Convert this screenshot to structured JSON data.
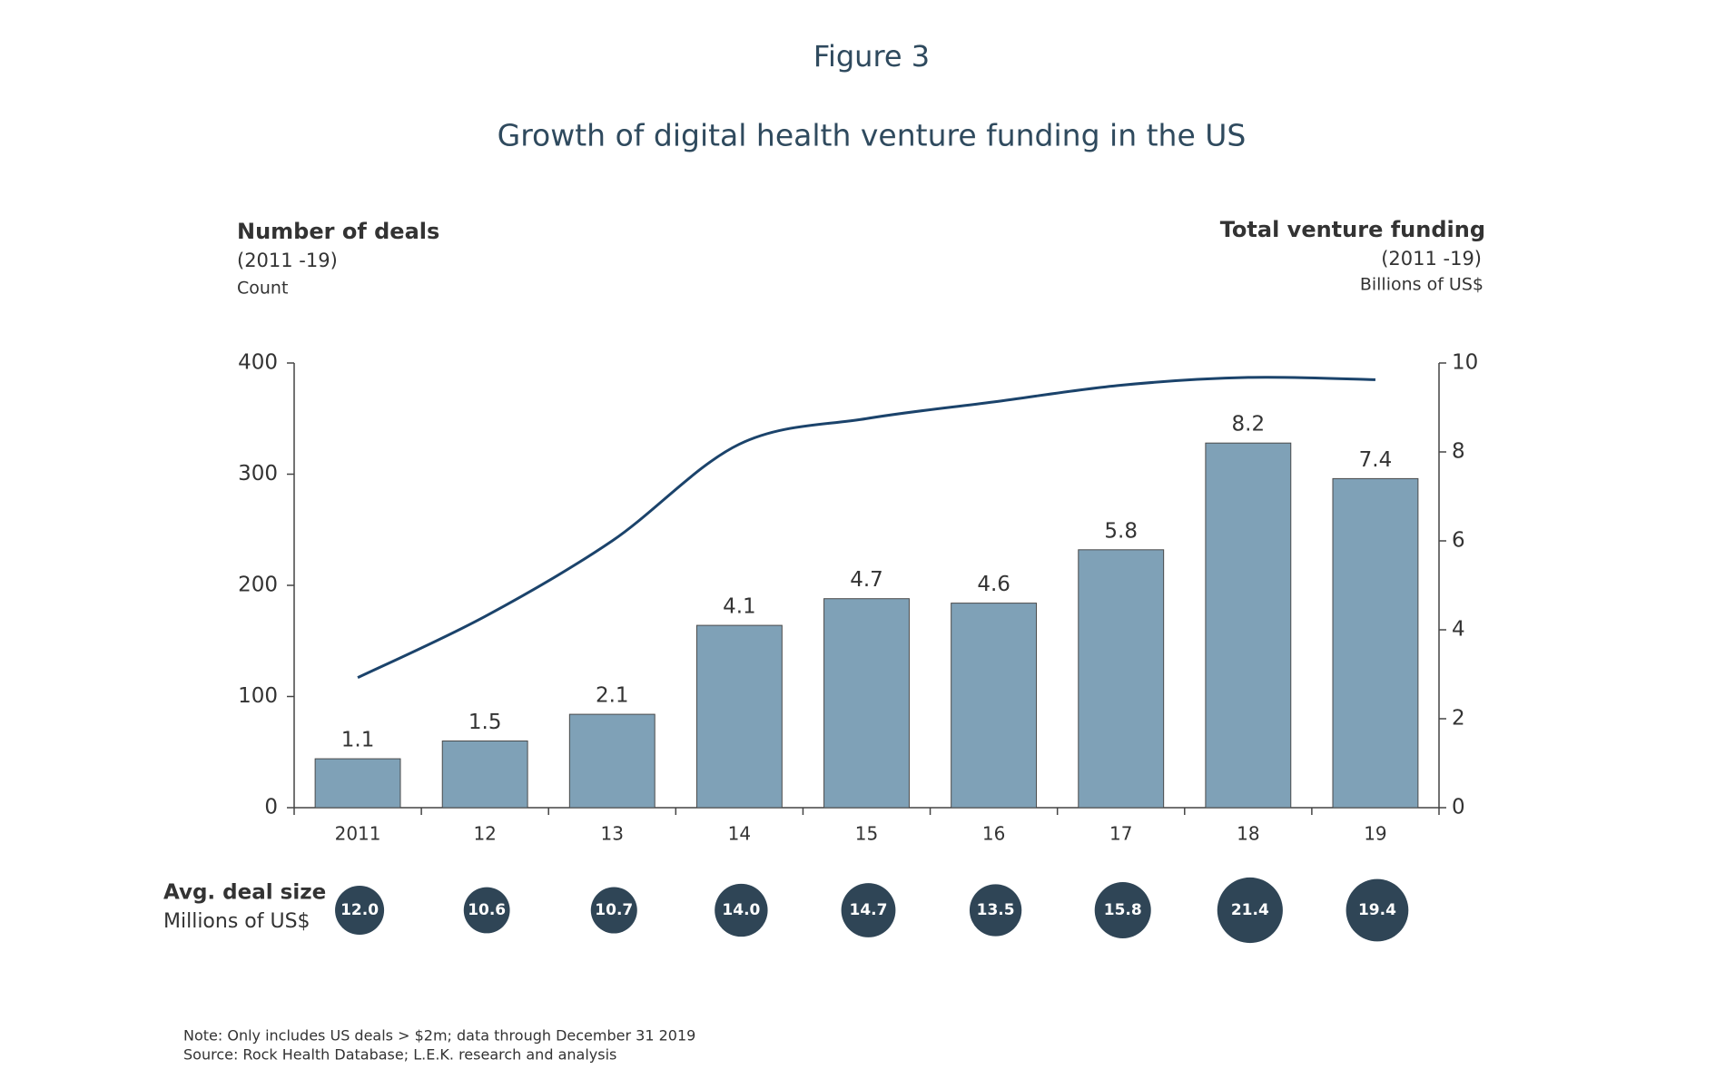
{
  "chart_data": {
    "type": "bar",
    "figure_label": "Figure 3",
    "title": "Growth of digital health venture funding in the US",
    "y_title": "Number of deals",
    "y_subtitle": "(2011 -19)",
    "y_unit": "Count",
    "y2_title": "Total venture funding",
    "y2_subtitle": "(2011 -19)",
    "y2_unit": "Billions of US$",
    "categories": [
      "2011",
      "12",
      "13",
      "14",
      "15",
      "16",
      "17",
      "18",
      "19"
    ],
    "series": [
      {
        "type": "bar",
        "axis": "y2",
        "color": "#7fa1b7",
        "values": [
          1.1,
          1.5,
          2.1,
          4.1,
          4.7,
          4.6,
          5.8,
          8.2,
          7.4
        ]
      },
      {
        "type": "line",
        "axis": "y",
        "color": "#1b436b",
        "values": [
          117,
          172,
          240,
          327,
          350,
          365,
          380,
          387,
          385
        ]
      }
    ],
    "ylim": [
      0,
      400
    ],
    "yticks": [
      0,
      100,
      200,
      300,
      400
    ],
    "y2lim": [
      0,
      10
    ],
    "y2ticks": [
      0,
      2,
      4,
      6,
      8,
      10
    ],
    "bubbles": {
      "title": "Avg. deal size",
      "subtitle": "Millions of US$",
      "color": "#2f4556",
      "values": [
        12.0,
        10.6,
        10.7,
        14.0,
        14.7,
        13.5,
        15.8,
        21.4,
        19.4
      ],
      "value_labels": [
        "12.0",
        "10.6",
        "10.7",
        "14.0",
        "14.7",
        "13.5",
        "15.8",
        "21.4",
        "19.4"
      ]
    },
    "notes": [
      "Note: Only includes US deals > $2m; data through December 31 2019",
      "Source: Rock Health Database; L.E.K. research and analysis"
    ]
  }
}
